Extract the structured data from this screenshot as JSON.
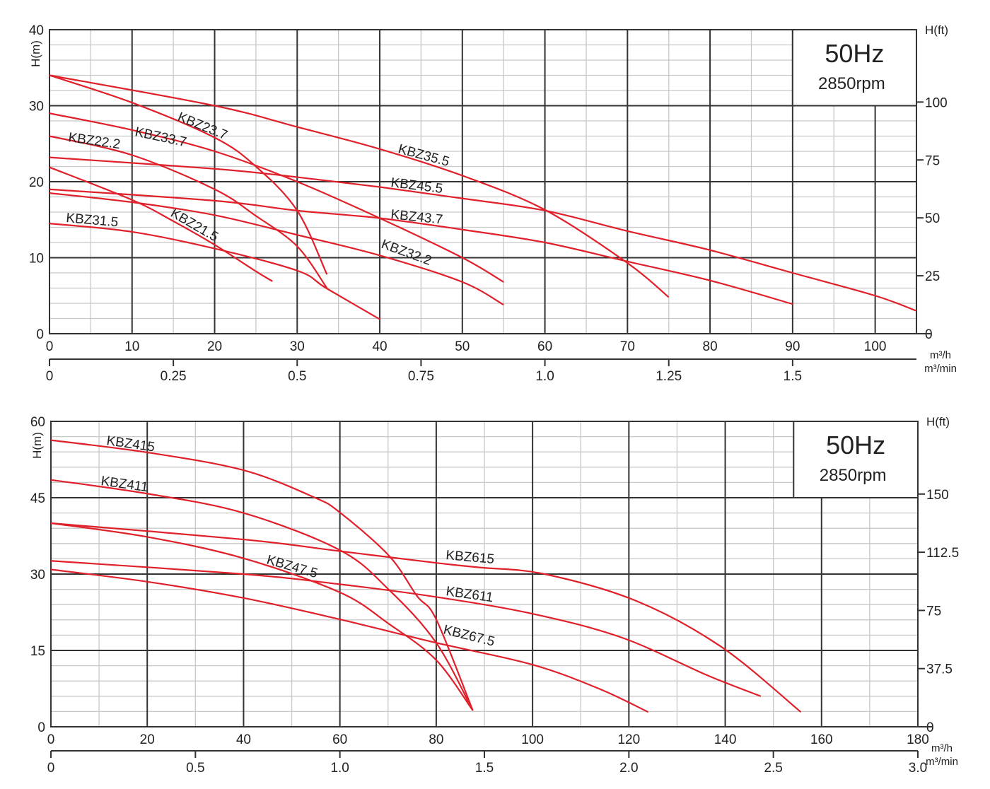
{
  "chart_data": [
    {
      "type": "line",
      "title": "",
      "ylabel": "H(m)",
      "y2label": "H(ft)",
      "xlabel": "m³/h",
      "x2label": "m³/min",
      "xlim": [
        0,
        105
      ],
      "ylim": [
        0,
        40
      ],
      "x_ticks": [
        0,
        10,
        20,
        30,
        40,
        50,
        60,
        70,
        80,
        90,
        100
      ],
      "y_ticks": [
        0,
        10,
        20,
        30,
        40
      ],
      "y2_ticks": [
        0,
        25,
        50,
        75,
        100
      ],
      "x2_ticks": [
        "0",
        "0.25",
        "0.5",
        "0.75",
        "1.0",
        "1.25",
        "1.5"
      ],
      "grid": true,
      "info_box": {
        "frequency": "50Hz",
        "speed": "2850rpm"
      },
      "series_color": "#e0202a",
      "series": [
        {
          "name": "KBZ23.7",
          "points": [
            [
              0,
              34
            ],
            [
              10,
              30.4
            ],
            [
              20,
              25.8
            ],
            [
              25,
              22
            ],
            [
              30,
              16.2
            ],
            [
              33.6,
              7.8
            ]
          ]
        },
        {
          "name": "KBZ33.7",
          "points": [
            [
              0,
              29
            ],
            [
              10,
              26.8
            ],
            [
              20,
              24
            ],
            [
              30,
              20
            ],
            [
              40,
              15.2
            ],
            [
              50,
              10
            ],
            [
              55,
              6.8
            ]
          ]
        },
        {
          "name": "KBZ22.2",
          "points": [
            [
              0,
              26
            ],
            [
              10,
              23.5
            ],
            [
              20,
              19
            ],
            [
              25,
              15.5
            ],
            [
              30,
              11.5
            ],
            [
              33.6,
              6
            ]
          ]
        },
        {
          "name": "KBZ35.5",
          "points": [
            [
              0,
              34
            ],
            [
              20,
              30
            ],
            [
              30,
              27.2
            ],
            [
              40,
              24.3
            ],
            [
              50,
              20.8
            ],
            [
              60,
              16.3
            ],
            [
              70,
              9.3
            ],
            [
              75,
              4.8
            ]
          ]
        },
        {
          "name": "KBZ45.5",
          "points": [
            [
              0,
              23.2
            ],
            [
              20,
              21.7
            ],
            [
              30,
              20.6
            ],
            [
              40,
              19.3
            ],
            [
              50,
              17.8
            ],
            [
              60,
              16.2
            ],
            [
              70,
              13.5
            ],
            [
              80,
              11
            ],
            [
              90,
              8
            ],
            [
              100,
              5
            ],
            [
              105,
              3
            ]
          ]
        },
        {
          "name": "KBZ43.7",
          "points": [
            [
              0,
              19
            ],
            [
              20,
              17.5
            ],
            [
              30,
              16.2
            ],
            [
              40,
              15.2
            ],
            [
              50,
              13.7
            ],
            [
              60,
              12
            ],
            [
              70,
              9.5
            ],
            [
              80,
              7
            ],
            [
              90,
              3.9
            ]
          ]
        },
        {
          "name": "KBZ31.5",
          "points": [
            [
              0,
              14.5
            ],
            [
              10,
              13.4
            ],
            [
              20,
              11.2
            ],
            [
              30,
              8.3
            ],
            [
              33.5,
              6
            ],
            [
              40,
              1.9
            ]
          ]
        },
        {
          "name": "KBZ21.5",
          "points": [
            [
              0,
              21.9
            ],
            [
              10,
              17.6
            ],
            [
              15,
              14.8
            ],
            [
              20,
              11.7
            ],
            [
              25,
              8.2
            ],
            [
              27,
              6.9
            ]
          ]
        },
        {
          "name": "KBZ32.2",
          "points": [
            [
              0,
              18.5
            ],
            [
              10,
              17.3
            ],
            [
              20,
              15.6
            ],
            [
              30,
              13
            ],
            [
              40,
              10.3
            ],
            [
              50,
              6.8
            ],
            [
              55,
              3.8
            ]
          ]
        }
      ]
    },
    {
      "type": "line",
      "title": "",
      "ylabel": "H(m)",
      "y2label": "H(ft)",
      "xlabel": "m³/h",
      "x2label": "m³/min",
      "xlim": [
        0,
        180
      ],
      "ylim": [
        0,
        60
      ],
      "x_ticks": [
        0,
        20,
        40,
        60,
        80,
        100,
        120,
        140,
        160,
        180
      ],
      "y_ticks": [
        0,
        15,
        30,
        45,
        60
      ],
      "y2_ticks": [
        0,
        37.5,
        75,
        112.5,
        150
      ],
      "x2_ticks": [
        "0",
        "0.5",
        "1.0",
        "1.5",
        "2.0",
        "2.5",
        "3.0"
      ],
      "grid": true,
      "info_box": {
        "frequency": "50Hz",
        "speed": "2850rpm"
      },
      "series_color": "#e0202a",
      "series": [
        {
          "name": "KBZ415",
          "points": [
            [
              0,
              56.3
            ],
            [
              20,
              53.9
            ],
            [
              40,
              50.4
            ],
            [
              54.6,
              45.1
            ],
            [
              60,
              42.1
            ],
            [
              70.2,
              33.6
            ],
            [
              76,
              25.7
            ],
            [
              80,
              21.1
            ],
            [
              87.6,
              3.2
            ]
          ]
        },
        {
          "name": "KBZ411",
          "points": [
            [
              0,
              48.5
            ],
            [
              20,
              45.8
            ],
            [
              40,
              42
            ],
            [
              60,
              34.7
            ],
            [
              70.2,
              26.9
            ],
            [
              80,
              16.5
            ],
            [
              87.6,
              3.2
            ]
          ]
        },
        {
          "name": "KBZ47.5",
          "points": [
            [
              0,
              40
            ],
            [
              20,
              37.3
            ],
            [
              40,
              33.1
            ],
            [
              60,
              26.4
            ],
            [
              70.2,
              20.2
            ],
            [
              80,
              13.1
            ],
            [
              87.6,
              3.2
            ]
          ]
        },
        {
          "name": "KBZ615",
          "points": [
            [
              0,
              40
            ],
            [
              40,
              36.8
            ],
            [
              60,
              34.5
            ],
            [
              80,
              32.2
            ],
            [
              89,
              31.3
            ],
            [
              102.5,
              30
            ],
            [
              121.6,
              24.7
            ],
            [
              139.2,
              15.7
            ],
            [
              155.7,
              2.9
            ]
          ]
        },
        {
          "name": "KBZ611",
          "points": [
            [
              0,
              32.6
            ],
            [
              40,
              30
            ],
            [
              60,
              28
            ],
            [
              80,
              25.5
            ],
            [
              100,
              22.2
            ],
            [
              118.6,
              17.5
            ],
            [
              136.3,
              10.1
            ],
            [
              147.4,
              6
            ]
          ]
        },
        {
          "name": "KBZ67.5",
          "points": [
            [
              0,
              30.9
            ],
            [
              20,
              28.5
            ],
            [
              40,
              25.3
            ],
            [
              60,
              21.1
            ],
            [
              80,
              16.5
            ],
            [
              100,
              12.2
            ],
            [
              114,
              7.4
            ],
            [
              124,
              2.9
            ]
          ]
        }
      ]
    }
  ]
}
